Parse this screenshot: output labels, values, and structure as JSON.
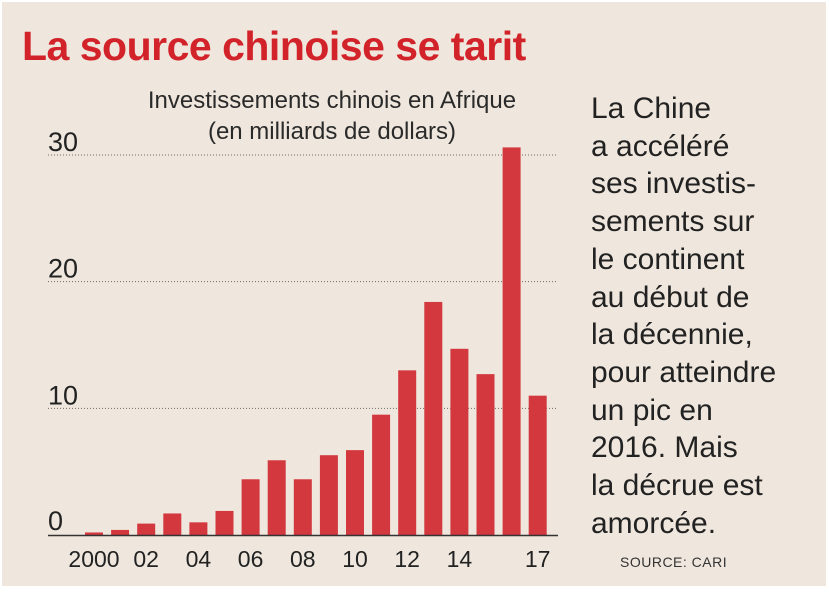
{
  "headline": "La source chinoise se tarit",
  "side_text": [
    "La Chine",
    "a accéléré",
    "ses investis-",
    "sements sur",
    "le continent",
    "au début de",
    "la décennie,",
    "pour atteindre",
    "un pic en",
    "2016. Mais",
    "la décrue est",
    "amorcée."
  ],
  "source": "SOURCE: CARI",
  "colors": {
    "background": "#efe7dd",
    "accent": "#d2232a",
    "bar": "#d2383e"
  },
  "chart_data": {
    "type": "bar",
    "title": "Investissements chinois en Afrique",
    "subtitle": "(en milliards de dollars)",
    "categories": [
      "2000",
      "2001",
      "2002",
      "2003",
      "2004",
      "2005",
      "2006",
      "2007",
      "2008",
      "2009",
      "2010",
      "2011",
      "2012",
      "2013",
      "2014",
      "2015",
      "2016",
      "2017"
    ],
    "values": [
      0.2,
      0.4,
      0.9,
      1.7,
      1.0,
      1.9,
      4.4,
      5.9,
      4.4,
      6.3,
      6.7,
      9.5,
      13.0,
      18.4,
      14.7,
      12.7,
      30.6,
      11.0
    ],
    "xtick_labels": [
      {
        "index": 0,
        "label": "2000"
      },
      {
        "index": 2,
        "label": "02"
      },
      {
        "index": 4,
        "label": "04"
      },
      {
        "index": 6,
        "label": "06"
      },
      {
        "index": 8,
        "label": "08"
      },
      {
        "index": 10,
        "label": "10"
      },
      {
        "index": 12,
        "label": "12"
      },
      {
        "index": 14,
        "label": "14"
      },
      {
        "index": 17,
        "label": "17"
      }
    ],
    "yticks": [
      0,
      10,
      20,
      30
    ],
    "ylim": [
      0,
      30
    ],
    "grid": "dotted horizontal"
  }
}
